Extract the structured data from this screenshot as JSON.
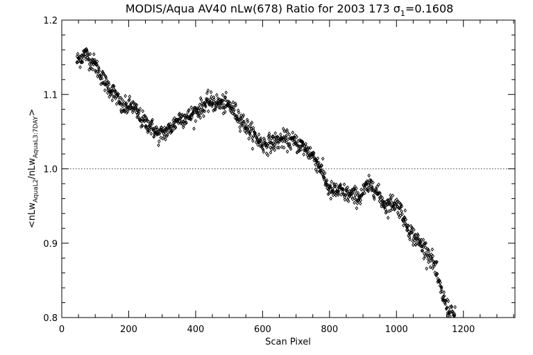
{
  "chart_data": {
    "type": "scatter",
    "title": {
      "prefix": "MODIS/Aqua AV40 nLw(678) Ratio for 2003 173 ",
      "sigma_symbol": "σ",
      "sigma_subscript": "1",
      "suffix": "=0.1608"
    },
    "xlabel": "Scan Pixel",
    "ylabel": {
      "prefix": "<nLw",
      "sub1": "AquaL2",
      "mid": "/nLw",
      "sub2": "AquaL3:7DAY",
      "suffix": ">"
    },
    "xlim": [
      0,
      1354
    ],
    "ylim": [
      0.8,
      1.2
    ],
    "xticks": [
      0,
      200,
      400,
      600,
      800,
      1000,
      1200
    ],
    "xtick_labels": [
      "0",
      "200",
      "400",
      "600",
      "800",
      "1000",
      "1200"
    ],
    "yticks": [
      0.8,
      0.9,
      1.0,
      1.1,
      1.2
    ],
    "ytick_labels": [
      "0.8",
      "0.9",
      "1.0",
      "1.1",
      "1.2"
    ],
    "reference_line": 1.0,
    "marker": "diamond",
    "grid": false,
    "x_range_of_points": [
      45,
      1175
    ],
    "trend": [
      [
        45,
        1.145
      ],
      [
        70,
        1.155
      ],
      [
        100,
        1.14
      ],
      [
        130,
        1.115
      ],
      [
        160,
        1.1
      ],
      [
        180,
        1.082
      ],
      [
        210,
        1.085
      ],
      [
        240,
        1.065
      ],
      [
        260,
        1.06
      ],
      [
        290,
        1.045
      ],
      [
        320,
        1.052
      ],
      [
        350,
        1.068
      ],
      [
        380,
        1.07
      ],
      [
        410,
        1.08
      ],
      [
        440,
        1.09
      ],
      [
        470,
        1.088
      ],
      [
        500,
        1.085
      ],
      [
        530,
        1.07
      ],
      [
        560,
        1.052
      ],
      [
        600,
        1.033
      ],
      [
        630,
        1.035
      ],
      [
        660,
        1.04
      ],
      [
        690,
        1.037
      ],
      [
        720,
        1.03
      ],
      [
        750,
        1.018
      ],
      [
        775,
        1.0
      ],
      [
        800,
        0.97
      ],
      [
        830,
        0.97
      ],
      [
        860,
        0.965
      ],
      [
        890,
        0.962
      ],
      [
        910,
        0.975
      ],
      [
        930,
        0.978
      ],
      [
        950,
        0.962
      ],
      [
        970,
        0.95
      ],
      [
        990,
        0.955
      ],
      [
        1010,
        0.948
      ],
      [
        1030,
        0.925
      ],
      [
        1050,
        0.91
      ],
      [
        1070,
        0.9
      ],
      [
        1090,
        0.89
      ],
      [
        1110,
        0.875
      ],
      [
        1130,
        0.84
      ],
      [
        1150,
        0.815
      ],
      [
        1175,
        0.8
      ]
    ],
    "noise_amplitude": 0.006,
    "points_per_pixel_step": 1
  }
}
